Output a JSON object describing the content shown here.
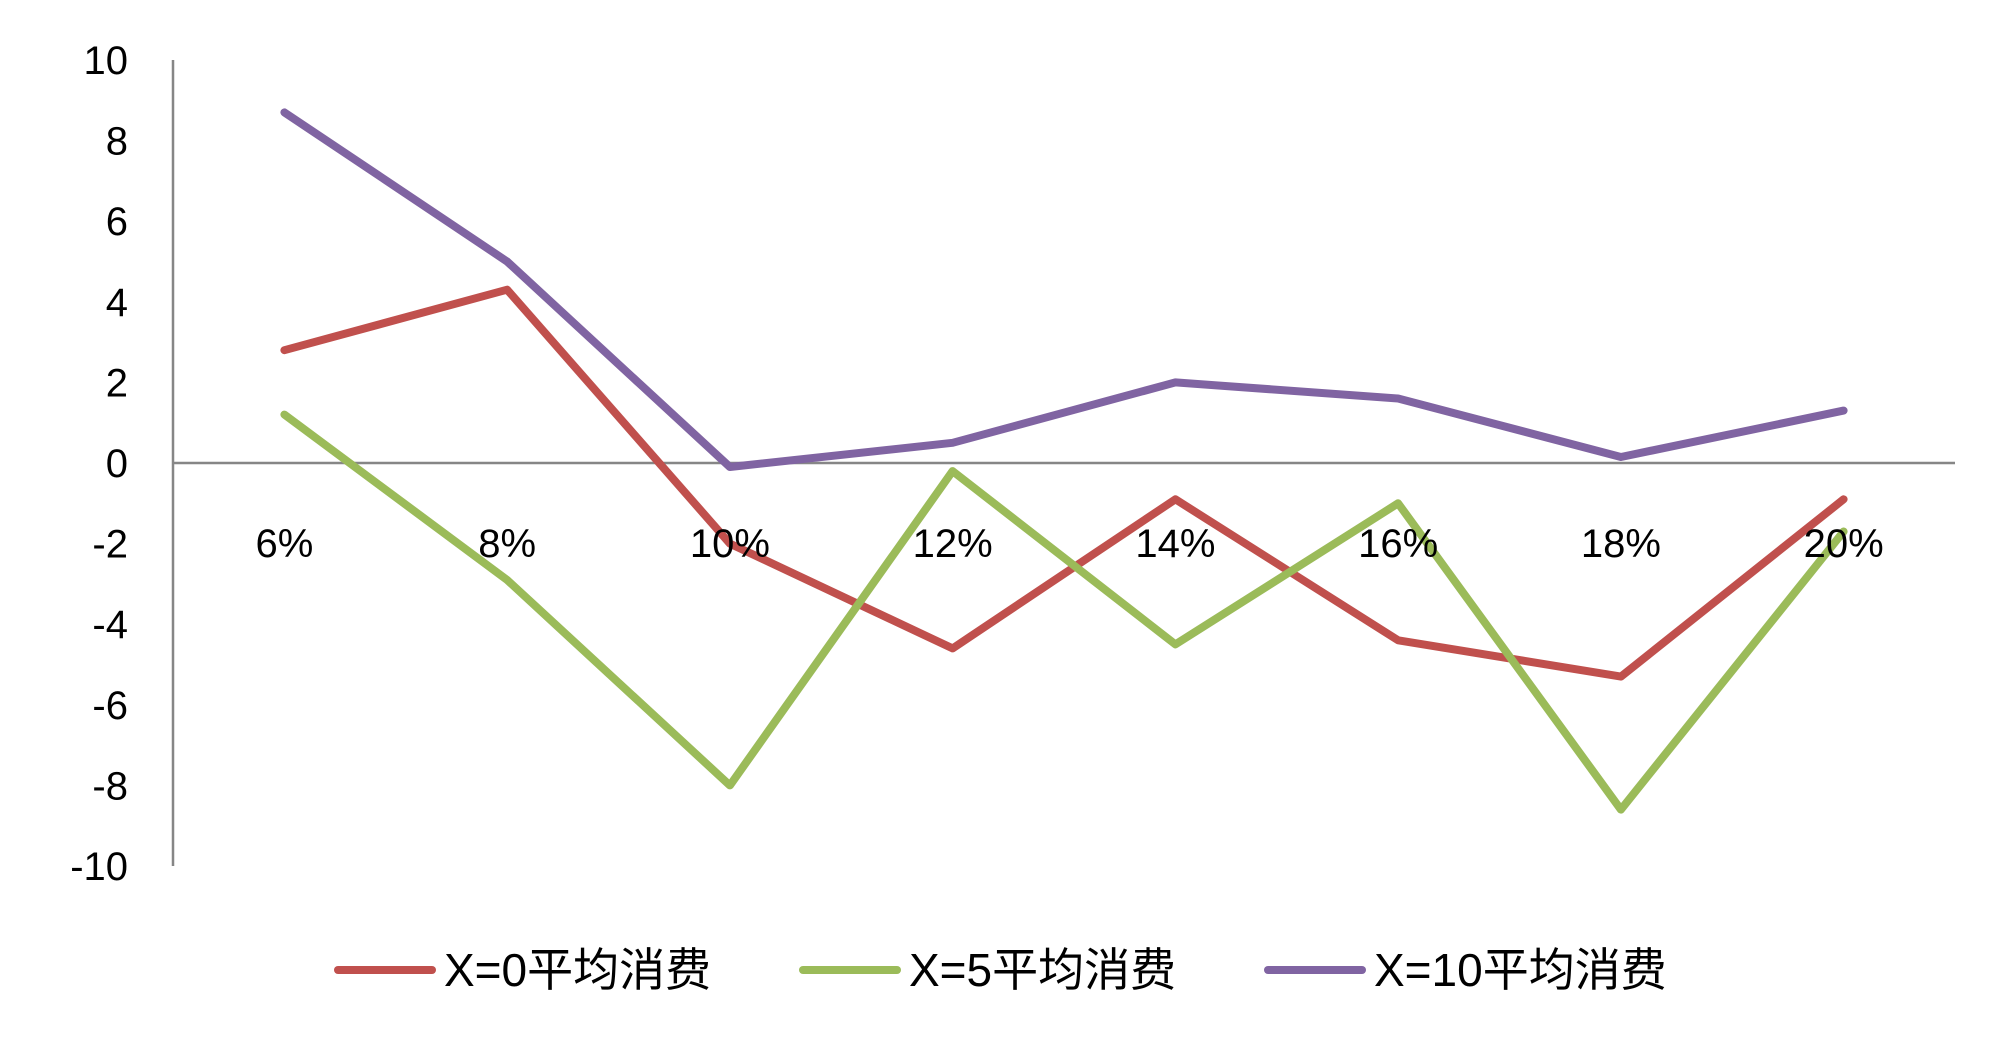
{
  "chart_data": {
    "type": "line",
    "title": "",
    "xlabel": "",
    "ylabel": "",
    "categories": [
      "6%",
      "8%",
      "10%",
      "12%",
      "14%",
      "16%",
      "18%",
      "20%"
    ],
    "ylim": [
      -10,
      10
    ],
    "yticks": [
      10,
      8,
      6,
      4,
      2,
      0,
      -2,
      -4,
      -6,
      -8,
      -10
    ],
    "grid": false,
    "legend_position": "bottom",
    "series": [
      {
        "name": "X=0平均消费",
        "color": "#c0504d",
        "values": [
          2.8,
          4.3,
          -2.0,
          -4.6,
          -0.9,
          -4.4,
          -5.3,
          -0.9
        ]
      },
      {
        "name": "X=5平均消费",
        "color": "#9bbb59",
        "values": [
          1.2,
          -2.9,
          -8.0,
          -0.2,
          -4.5,
          -1.0,
          -8.6,
          -1.7
        ]
      },
      {
        "name": "X=10平均消费",
        "color": "#8064a2",
        "values": [
          8.7,
          5.0,
          -0.1,
          0.5,
          2.0,
          1.6,
          0.15,
          1.3
        ]
      }
    ]
  }
}
